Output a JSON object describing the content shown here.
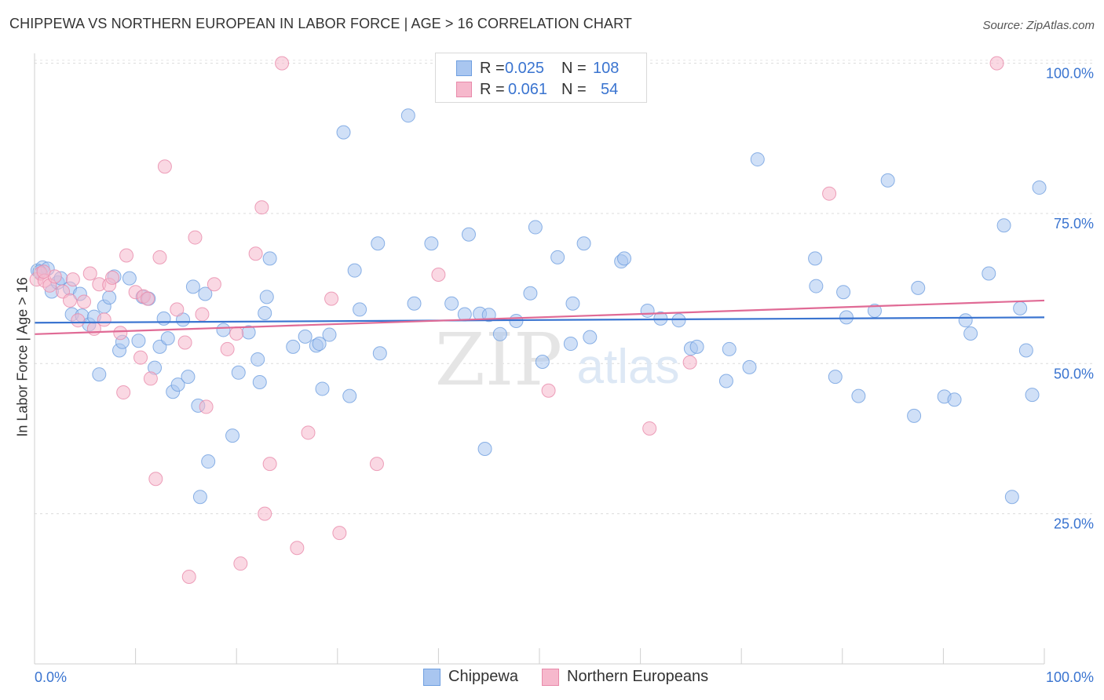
{
  "title": "CHIPPEWA VS NORTHERN EUROPEAN IN LABOR FORCE | AGE > 16 CORRELATION CHART",
  "source": "Source: ZipAtlas.com",
  "watermark": {
    "zip": "ZIP",
    "atlas": "atlas"
  },
  "legend": {
    "rows": [
      {
        "r_label": "R =",
        "r_value": "0.025",
        "n_label": "N =",
        "n_value": "108"
      },
      {
        "r_label": "R =",
        "r_value": "0.061",
        "n_label": "N =",
        "n_value": "54"
      }
    ]
  },
  "colors": {
    "blue": "#a9c6f0",
    "blue_edge": "#6f9fe0",
    "blue_line": "#3a74d0",
    "pink": "#f6b8cc",
    "pink_edge": "#e88aaa",
    "pink_line": "#e06a95",
    "tick_label": "#3a74d0"
  },
  "chart_data": {
    "type": "scatter",
    "title": "CHIPPEWA VS NORTHERN EUROPEAN IN LABOR FORCE | AGE > 16 CORRELATION CHART",
    "xlabel": "",
    "ylabel": "In Labor Force | Age > 16",
    "xlim": [
      0,
      100
    ],
    "ylim": [
      0,
      102
    ],
    "x_tick_labels": [
      "0.0%",
      "100.0%"
    ],
    "y_ticks": [
      25,
      50,
      75,
      100
    ],
    "y_tick_labels": [
      "25.0%",
      "50.0%",
      "75.0%",
      "100.0%"
    ],
    "grid": true,
    "legend_position": "top-center",
    "series": [
      {
        "name": "Chippewa",
        "color": "#a9c6f0",
        "r": 0.025,
        "n": 108,
        "trend": {
          "x": [
            0,
            100
          ],
          "y": [
            56.8,
            57.7
          ]
        },
        "points": [
          [
            0.3,
            65.5
          ],
          [
            0.8,
            66
          ],
          [
            1.3,
            65.8
          ],
          [
            1.7,
            62
          ],
          [
            2.3,
            63.5
          ],
          [
            2.6,
            64.2
          ],
          [
            3.5,
            62.5
          ],
          [
            3.7,
            58.2
          ],
          [
            4.5,
            61.6
          ],
          [
            4.7,
            58
          ],
          [
            5.4,
            56.5
          ],
          [
            5.9,
            57.8
          ],
          [
            6.4,
            48.2
          ],
          [
            6.9,
            59.5
          ],
          [
            7.4,
            61
          ],
          [
            7.9,
            64.5
          ],
          [
            8.4,
            52.2
          ],
          [
            8.7,
            53.6
          ],
          [
            9.4,
            64.2
          ],
          [
            10.3,
            53.8
          ],
          [
            10.7,
            61.1
          ],
          [
            11.3,
            60.8
          ],
          [
            11.9,
            49.3
          ],
          [
            12.4,
            52.8
          ],
          [
            12.8,
            57.5
          ],
          [
            13.2,
            54.2
          ],
          [
            13.7,
            45.3
          ],
          [
            14.2,
            46.5
          ],
          [
            14.7,
            57.3
          ],
          [
            15.2,
            47.8
          ],
          [
            15.7,
            62.8
          ],
          [
            16.2,
            43
          ],
          [
            16.4,
            27.8
          ],
          [
            16.9,
            61.6
          ],
          [
            17.2,
            33.7
          ],
          [
            18.7,
            55.6
          ],
          [
            19.6,
            38
          ],
          [
            20.2,
            48.5
          ],
          [
            21.2,
            55.2
          ],
          [
            22.1,
            50.7
          ],
          [
            22.3,
            46.9
          ],
          [
            22.8,
            58.4
          ],
          [
            23.0,
            61.1
          ],
          [
            23.3,
            67.5
          ],
          [
            25.6,
            52.8
          ],
          [
            26.8,
            54.5
          ],
          [
            27.9,
            53
          ],
          [
            28.2,
            53.3
          ],
          [
            28.5,
            45.8
          ],
          [
            29.2,
            54.8
          ],
          [
            30.6,
            88.5
          ],
          [
            31.2,
            44.6
          ],
          [
            31.7,
            65.5
          ],
          [
            32.2,
            59
          ],
          [
            34.0,
            70
          ],
          [
            34.2,
            51.7
          ],
          [
            37.0,
            91.3
          ],
          [
            37.6,
            60
          ],
          [
            39.3,
            70
          ],
          [
            41.3,
            60
          ],
          [
            42.6,
            58.2
          ],
          [
            43.0,
            71.5
          ],
          [
            44.1,
            58.3
          ],
          [
            44.6,
            35.8
          ],
          [
            45.0,
            58.1
          ],
          [
            46.1,
            54.9
          ],
          [
            47.7,
            57.1
          ],
          [
            49.1,
            61.7
          ],
          [
            49.6,
            72.7
          ],
          [
            50.3,
            50.3
          ],
          [
            51.8,
            67.7
          ],
          [
            53.1,
            53.3
          ],
          [
            53.3,
            60
          ],
          [
            54.4,
            70
          ],
          [
            55.0,
            54.4
          ],
          [
            58.1,
            67
          ],
          [
            58.4,
            67.5
          ],
          [
            60.7,
            58.8
          ],
          [
            62.0,
            57.5
          ],
          [
            63.8,
            57.2
          ],
          [
            65.0,
            52.5
          ],
          [
            65.6,
            52.8
          ],
          [
            68.5,
            47.1
          ],
          [
            68.8,
            52.4
          ],
          [
            70.8,
            49.4
          ],
          [
            71.6,
            84
          ],
          [
            77.3,
            67.5
          ],
          [
            77.4,
            62.9
          ],
          [
            79.3,
            47.8
          ],
          [
            80.1,
            61.9
          ],
          [
            80.4,
            57.7
          ],
          [
            81.6,
            44.6
          ],
          [
            83.2,
            58.8
          ],
          [
            84.5,
            80.5
          ],
          [
            87.1,
            41.3
          ],
          [
            87.5,
            62.6
          ],
          [
            90.1,
            44.5
          ],
          [
            91.1,
            44
          ],
          [
            92.2,
            57.2
          ],
          [
            92.7,
            55
          ],
          [
            94.5,
            65
          ],
          [
            96.0,
            73
          ],
          [
            96.8,
            27.8
          ],
          [
            97.6,
            59.2
          ],
          [
            98.2,
            52.2
          ],
          [
            98.8,
            44.8
          ],
          [
            99.5,
            79.3
          ],
          [
            0.5,
            65.3
          ]
        ]
      },
      {
        "name": "Northern Europeans",
        "color": "#f6b8cc",
        "r": 0.061,
        "n": 54,
        "trend": {
          "x": [
            0,
            100
          ],
          "y": [
            54.9,
            60.5
          ]
        },
        "points": [
          [
            0.2,
            64
          ],
          [
            0.6,
            65
          ],
          [
            1.0,
            63.8
          ],
          [
            1.5,
            63
          ],
          [
            2.0,
            64.5
          ],
          [
            2.8,
            62
          ],
          [
            3.5,
            60.5
          ],
          [
            3.8,
            64
          ],
          [
            4.3,
            57.2
          ],
          [
            4.9,
            60.3
          ],
          [
            5.5,
            65
          ],
          [
            5.9,
            55.8
          ],
          [
            6.4,
            63.2
          ],
          [
            6.9,
            57.3
          ],
          [
            7.4,
            63.1
          ],
          [
            7.7,
            64.3
          ],
          [
            8.5,
            55.1
          ],
          [
            8.8,
            45.2
          ],
          [
            9.1,
            68
          ],
          [
            10.0,
            61.9
          ],
          [
            10.5,
            51
          ],
          [
            10.8,
            61.2
          ],
          [
            11.5,
            47.5
          ],
          [
            12.0,
            30.8
          ],
          [
            12.4,
            67.7
          ],
          [
            12.9,
            82.8
          ],
          [
            14.1,
            59
          ],
          [
            14.9,
            53.5
          ],
          [
            15.3,
            14.5
          ],
          [
            15.9,
            71
          ],
          [
            16.6,
            58.2
          ],
          [
            17.0,
            42.8
          ],
          [
            17.8,
            63.2
          ],
          [
            19.1,
            52.4
          ],
          [
            20.0,
            55
          ],
          [
            20.4,
            16.7
          ],
          [
            21.9,
            68.3
          ],
          [
            22.5,
            76
          ],
          [
            22.8,
            25
          ],
          [
            23.3,
            33.3
          ],
          [
            24.5,
            100
          ],
          [
            26.0,
            19.3
          ],
          [
            27.1,
            38.5
          ],
          [
            29.4,
            60.8
          ],
          [
            30.2,
            21.8
          ],
          [
            33.9,
            33.3
          ],
          [
            40.0,
            64.8
          ],
          [
            50.9,
            45.5
          ],
          [
            60.9,
            39.2
          ],
          [
            64.9,
            50.2
          ],
          [
            78.7,
            78.3
          ],
          [
            95.3,
            100
          ],
          [
            0.9,
            65.3
          ],
          [
            11.2,
            60.8
          ]
        ]
      }
    ]
  }
}
